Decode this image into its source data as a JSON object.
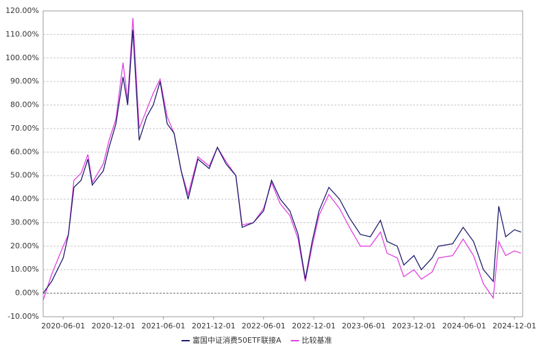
{
  "chart_data": {
    "type": "line",
    "x": [
      "2020-03-20",
      "2020-04-20",
      "2020-06-01",
      "2020-06-20",
      "2020-07-10",
      "2020-08-05",
      "2020-08-30",
      "2020-09-15",
      "2020-10-25",
      "2020-11-15",
      "2020-12-10",
      "2021-01-05",
      "2021-01-22",
      "2021-02-10",
      "2021-03-05",
      "2021-04-01",
      "2021-04-25",
      "2021-05-20",
      "2021-06-15",
      "2021-07-10",
      "2021-08-05",
      "2021-08-30",
      "2021-10-05",
      "2021-11-15",
      "2021-12-15",
      "2022-01-15",
      "2022-02-20",
      "2022-03-15",
      "2022-04-25",
      "2022-06-01",
      "2022-06-30",
      "2022-08-01",
      "2022-09-05",
      "2022-10-05",
      "2022-10-31",
      "2022-11-25",
      "2022-12-20",
      "2023-01-25",
      "2023-03-05",
      "2023-04-10",
      "2023-05-20",
      "2023-06-25",
      "2023-08-01",
      "2023-08-25",
      "2023-10-01",
      "2023-10-25",
      "2023-12-01",
      "2023-12-28",
      "2024-02-05",
      "2024-02-28",
      "2024-04-20",
      "2024-05-28",
      "2024-07-05",
      "2024-08-10",
      "2024-09-15",
      "2024-10-05",
      "2024-10-30",
      "2024-12-01",
      "2024-12-25"
    ],
    "series": [
      {
        "name": "富国中证消费50ETF联接A",
        "color": "#1c1c6b",
        "values": [
          0,
          5,
          15,
          25,
          45,
          48,
          57,
          46,
          52,
          62,
          72,
          92,
          80,
          112,
          65,
          75,
          80,
          90,
          72,
          68,
          52,
          40,
          57,
          53,
          62,
          55,
          50,
          28,
          30,
          35,
          48,
          40,
          35,
          25,
          6,
          22,
          35,
          45,
          40,
          32,
          25,
          24,
          31,
          22,
          20,
          12,
          16,
          10,
          15,
          20,
          21,
          28,
          22,
          10,
          5,
          37,
          24,
          27,
          26
        ]
      },
      {
        "name": "比较基准",
        "color": "#e040e0",
        "values": [
          -3,
          8,
          20,
          25,
          48,
          51,
          59,
          47,
          55,
          65,
          74,
          98,
          82,
          117,
          70,
          78,
          85,
          91,
          75,
          68,
          52,
          42,
          58,
          54,
          62,
          56,
          50,
          29,
          30,
          36,
          47,
          38,
          33,
          23,
          5,
          20,
          33,
          42,
          36,
          28,
          20,
          20,
          26,
          17,
          15,
          7,
          10,
          6,
          9,
          15,
          16,
          23,
          16,
          4,
          -2,
          22,
          16,
          18,
          17
        ]
      }
    ],
    "xlim": [
      "2020-03-20",
      "2024-12-31"
    ],
    "xticks": [
      "2020-06-01",
      "2020-12-01",
      "2021-06-01",
      "2021-12-01",
      "2022-06-01",
      "2022-12-01",
      "2023-06-01",
      "2023-12-01",
      "2024-06-01",
      "2024-12-01"
    ],
    "ylim": [
      -10,
      120
    ],
    "yticks": [
      {
        "value": -10,
        "label": "-10.00%"
      },
      {
        "value": 0,
        "label": "0.00%"
      },
      {
        "value": 10,
        "label": "10.00%"
      },
      {
        "value": 20,
        "label": "20.00%"
      },
      {
        "value": 30,
        "label": "30.00%"
      },
      {
        "value": 40,
        "label": "40.00%"
      },
      {
        "value": 50,
        "label": "50.00%"
      },
      {
        "value": 60,
        "label": "60.00%"
      },
      {
        "value": 70,
        "label": "70.00%"
      },
      {
        "value": 80,
        "label": "80.00%"
      },
      {
        "value": 90,
        "label": "90.00%"
      },
      {
        "value": 100,
        "label": "100.00%"
      },
      {
        "value": 110,
        "label": "110.00%"
      },
      {
        "value": 120,
        "label": "120.00%"
      }
    ],
    "grid": true,
    "legend": "bottom"
  }
}
